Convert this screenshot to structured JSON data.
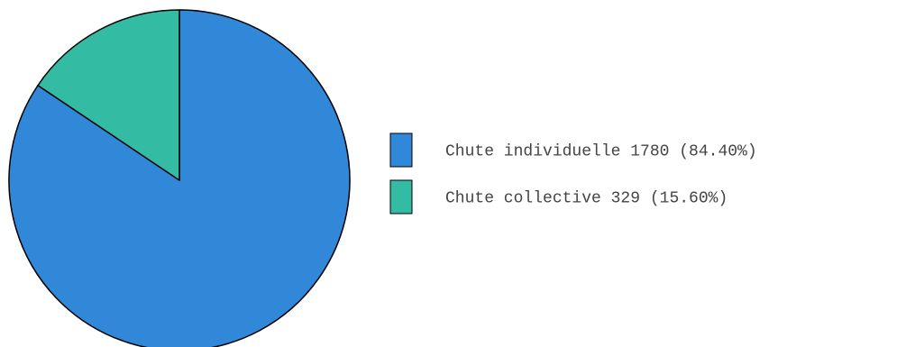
{
  "chart_data": {
    "type": "pie",
    "title": "",
    "legend_position": "right",
    "slices": [
      {
        "label": "Chute individuelle",
        "value": 1780,
        "percent": 84.4,
        "color": "#3288d8",
        "legend_text": "Chute individuelle 1780 (84.40%)"
      },
      {
        "label": "Chute collective",
        "value": 329,
        "percent": 15.6,
        "color": "#33bba3",
        "legend_text": "Chute collective 329 (15.60%)"
      }
    ]
  }
}
